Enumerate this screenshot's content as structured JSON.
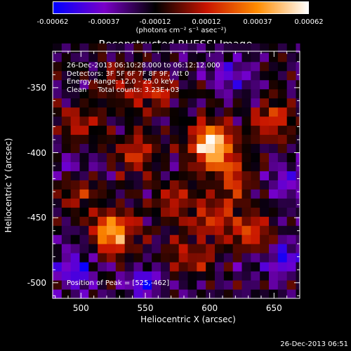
{
  "chart_data": {
    "type": "heatmap",
    "title": "Reconstructed RHESSI Image",
    "xlabel": "Heliocentric X (arcsec)",
    "ylabel": "Heliocentric Y (arcsec)",
    "xlim": [
      478,
      670
    ],
    "ylim": [
      -512,
      -322
    ],
    "x_ticks": [
      500,
      550,
      600,
      650
    ],
    "y_ticks": [
      -350,
      -400,
      -450,
      -500
    ],
    "colorbar": {
      "ticks": [
        "-0.00062",
        "-0.00037",
        "-0.00012",
        "0.00012",
        "0.00037",
        "0.00062"
      ],
      "unit_label": "(photons cm⁻² s⁻¹ asec⁻²)",
      "range": [
        -0.00062,
        0.00062
      ],
      "colors": [
        "#0000ff",
        "#7a00c8",
        "#000000",
        "#c81400",
        "#ff8c00",
        "#ffffff"
      ]
    },
    "info": {
      "time": "26-Dec-2013 06:10:28.000 to 06:12:12.000",
      "detectors": "Detectors: 3F 5F 6F 7F 8F 9F, Att 0",
      "energy": "Energy Range: 12.0 - 25.0 keV",
      "method": "Clean     Total counts: 3.23E+03"
    },
    "peak": "Position of Peak = [525,-462]",
    "bright_regions": [
      {
        "x": 525,
        "y": -462,
        "value": 0.00062
      },
      {
        "x": 600,
        "y": -390,
        "value": 0.0005
      },
      {
        "x": 605,
        "y": -400,
        "value": 0.00045
      },
      {
        "x": 650,
        "y": -375,
        "value": 0.0004
      },
      {
        "x": 500,
        "y": -378,
        "value": 0.00035
      },
      {
        "x": 530,
        "y": -345,
        "value": 0.0003
      },
      {
        "x": 540,
        "y": -400,
        "value": 0.00038
      },
      {
        "x": 570,
        "y": -440,
        "value": 0.00032
      },
      {
        "x": 605,
        "y": -450,
        "value": 0.00035
      },
      {
        "x": 635,
        "y": -460,
        "value": 0.0004
      },
      {
        "x": 560,
        "y": -355,
        "value": 0.0003
      },
      {
        "x": 585,
        "y": -480,
        "value": 0.00028
      },
      {
        "x": 620,
        "y": -420,
        "value": 0.0003
      },
      {
        "x": 500,
        "y": -430,
        "value": 0.00025
      }
    ],
    "dark_regions": [
      {
        "x": 495,
        "y": -490,
        "value": -0.0003
      },
      {
        "x": 550,
        "y": -500,
        "value": -0.0003
      },
      {
        "x": 660,
        "y": -480,
        "value": -0.0003
      },
      {
        "x": 620,
        "y": -340,
        "value": -0.00028
      },
      {
        "x": 660,
        "y": -420,
        "value": -0.00022
      },
      {
        "x": 500,
        "y": -410,
        "value": -0.0002
      }
    ]
  },
  "timestamp": "26-Dec-2013 06:51"
}
